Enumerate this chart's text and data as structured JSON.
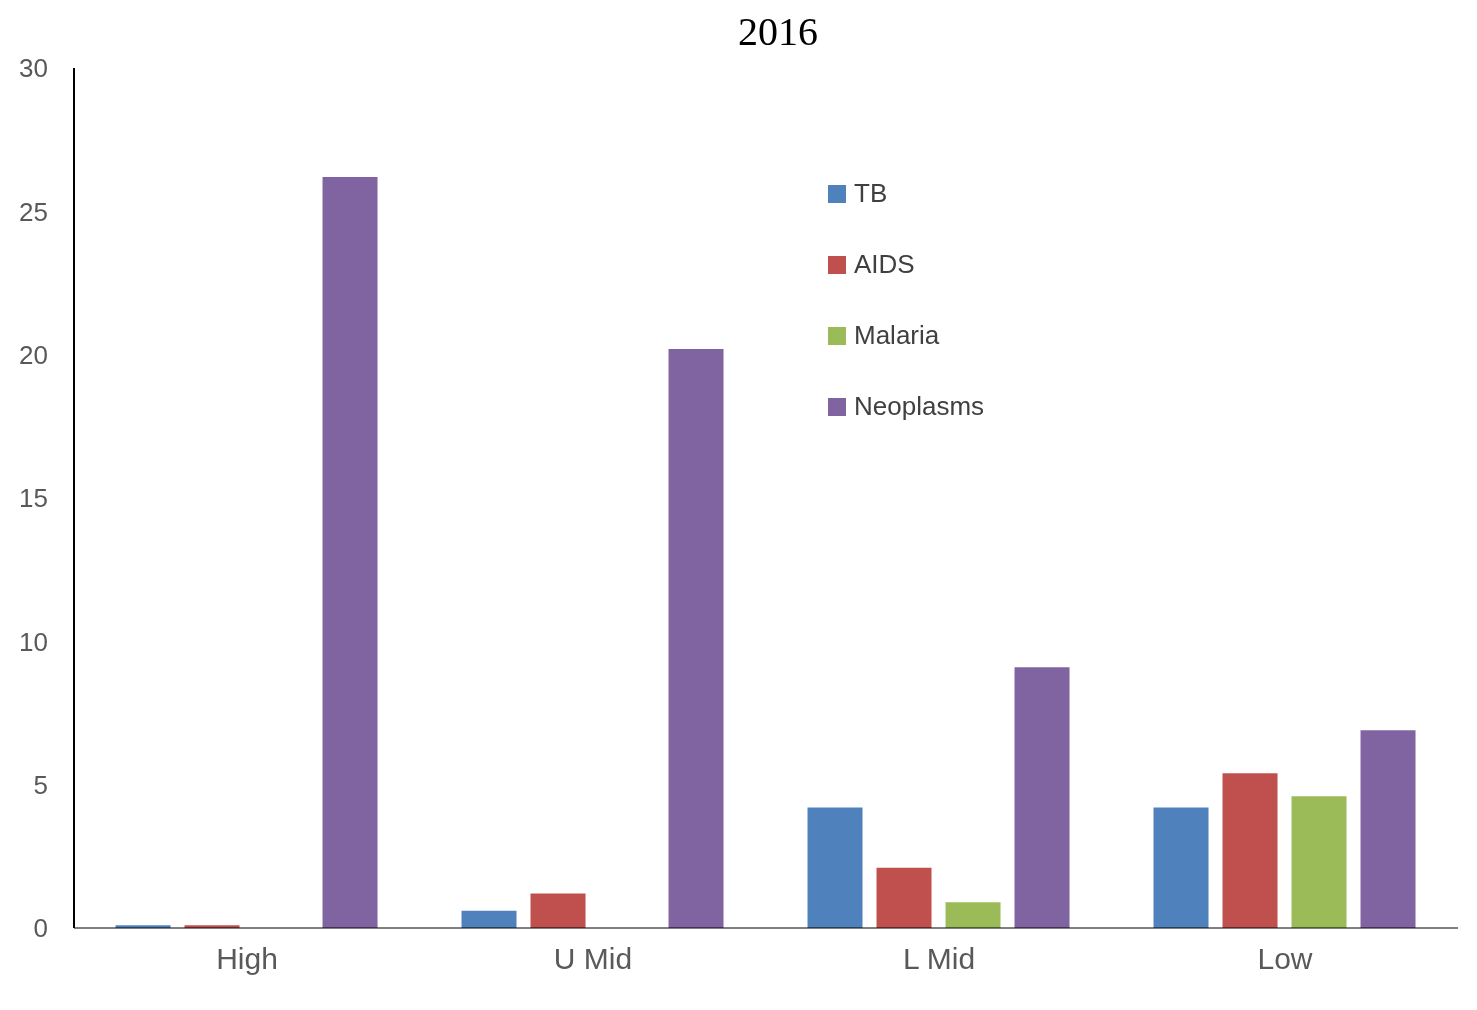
{
  "chart_data": {
    "type": "bar",
    "title": "2016",
    "categories": [
      "High",
      "U Mid",
      "L Mid",
      "Low"
    ],
    "series": [
      {
        "name": "TB",
        "color": "#4f81bd",
        "values": [
          0.1,
          0.6,
          4.2,
          4.2
        ]
      },
      {
        "name": "AIDS",
        "color": "#c0504d",
        "values": [
          0.1,
          1.2,
          2.1,
          5.4
        ]
      },
      {
        "name": "Malaria",
        "color": "#9bbb59",
        "values": [
          0,
          0,
          0.9,
          4.6
        ]
      },
      {
        "name": "Neoplasms",
        "color": "#8064a2",
        "values": [
          26.2,
          20.2,
          9.1,
          6.9
        ]
      }
    ],
    "ylim": [
      0,
      30
    ],
    "yticks": [
      0,
      5,
      10,
      15,
      20,
      25,
      30
    ],
    "grid": false,
    "legend": "top right"
  }
}
